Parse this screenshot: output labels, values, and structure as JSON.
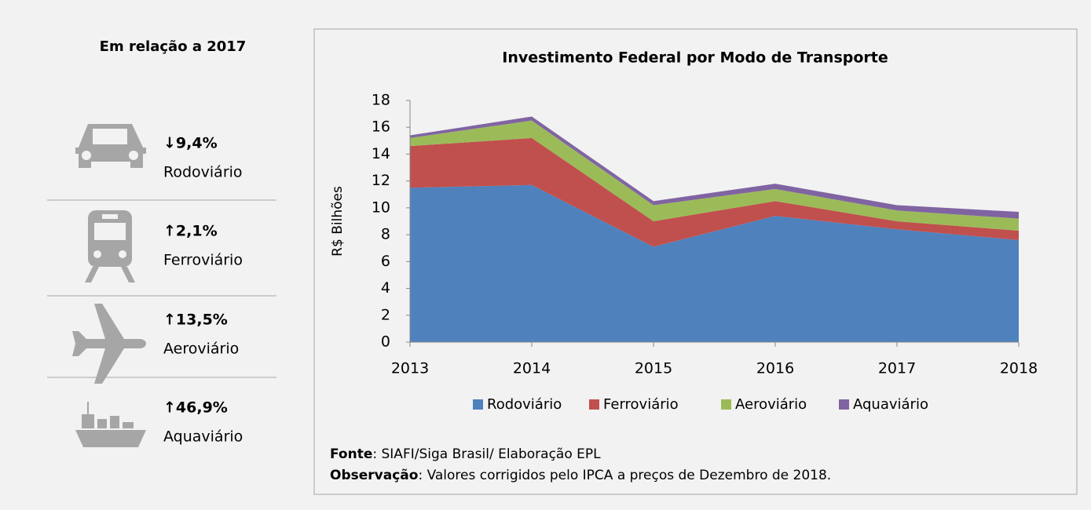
{
  "panel": {
    "title": "Em relação a 2017",
    "items": [
      {
        "change": "↓9,4%",
        "label": "Rodoviário",
        "color": "#ff0000"
      },
      {
        "change": "↑2,1%",
        "label": "Ferroviário",
        "color": "#4f81bd"
      },
      {
        "change": "↑13,5%",
        "label": "Aeroviário",
        "color": "#4f81bd"
      },
      {
        "change": "↑46,9%",
        "label": "Aquaviário",
        "color": "#4f81bd"
      }
    ]
  },
  "chart_data": {
    "type": "stacked_area",
    "title": "Investimento Federal por Modo de Transporte",
    "ylabel": "R$ Bilhões",
    "categories": [
      "2013",
      "2014",
      "2015",
      "2016",
      "2017",
      "2018"
    ],
    "series": [
      {
        "name": "Rodoviário",
        "color": "#4f81bd",
        "values": [
          11.5,
          11.7,
          7.1,
          9.4,
          8.4,
          7.6
        ]
      },
      {
        "name": "Ferroviário",
        "color": "#c0504d",
        "values": [
          3.1,
          3.5,
          1.9,
          1.1,
          0.6,
          0.7
        ]
      },
      {
        "name": "Aeroviário",
        "color": "#9bbb59",
        "values": [
          0.6,
          1.3,
          1.2,
          0.9,
          0.8,
          0.9
        ]
      },
      {
        "name": "Aquaviário",
        "color": "#8064a2",
        "values": [
          0.2,
          0.3,
          0.3,
          0.4,
          0.4,
          0.5
        ]
      }
    ],
    "ylim": [
      0,
      18
    ],
    "yticks": [
      0,
      2,
      4,
      6,
      8,
      10,
      12,
      14,
      16,
      18
    ],
    "legend": "bottom"
  },
  "notes": [
    {
      "label": "Fonte",
      "text": ": SIAFI/Siga Brasil/ Elaboração EPL"
    },
    {
      "label": "Observação",
      "text": ": Valores corrigidos pelo IPCA a preços de Dezembro de 2018."
    }
  ]
}
